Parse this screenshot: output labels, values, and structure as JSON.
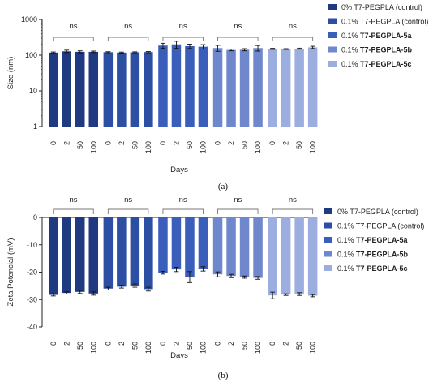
{
  "series_styles": [
    {
      "color": "#203a82"
    },
    {
      "color": "#2c4ea3"
    },
    {
      "color": "#3a5fba"
    },
    {
      "color": "#6f87cc"
    },
    {
      "color": "#9caddf"
    }
  ],
  "chart_data": [
    {
      "type": "bar",
      "panel_label": "(a)",
      "ylabel": "Size (nm)",
      "xlabel": "Days",
      "yscale": "log",
      "ylim": [
        1,
        1000
      ],
      "yticks": [
        "1",
        "10",
        "100",
        "1000"
      ],
      "categories": [
        "0",
        "2",
        "50",
        "100"
      ],
      "significance": [
        "ns",
        "ns",
        "ns",
        "ns",
        "ns"
      ],
      "series": [
        {
          "name_prefix": "0% ",
          "name_main": "T7-PEGPLA (control)",
          "bold": false,
          "values": [
            118,
            128,
            124,
            124
          ],
          "errors": [
            5,
            10,
            8,
            6
          ]
        },
        {
          "name_prefix": "0.1% ",
          "name_main": "T7-PEGPLA (control)",
          "bold": false,
          "values": [
            121,
            118,
            120,
            122
          ],
          "errors": [
            4,
            4,
            4,
            5
          ]
        },
        {
          "name_prefix": "0.1% ",
          "name_main": "T7-PEGPLA-5a",
          "bold": true,
          "values": [
            185,
            200,
            178,
            172
          ],
          "errors": [
            30,
            45,
            25,
            25
          ]
        },
        {
          "name_prefix": "0.1% ",
          "name_main": "T7-PEGPLA-5b",
          "bold": true,
          "values": [
            158,
            140,
            142,
            158
          ],
          "errors": [
            30,
            8,
            10,
            28
          ]
        },
        {
          "name_prefix": "0.1% ",
          "name_main": "T7-PEGPLA-5c",
          "bold": true,
          "values": [
            150,
            148,
            152,
            165
          ],
          "errors": [
            5,
            4,
            5,
            12
          ]
        }
      ]
    },
    {
      "type": "bar",
      "panel_label": "(b)",
      "ylabel": "Zeta Potencial (mV)",
      "xlabel": "Days",
      "yscale": "linear",
      "ylim": [
        -40,
        0
      ],
      "yticks": [
        "0",
        "-10",
        "-20",
        "-30",
        "-40"
      ],
      "categories": [
        "0",
        "2",
        "50",
        "100"
      ],
      "significance": [
        "ns",
        "ns",
        "ns",
        "ns",
        "ns"
      ],
      "series": [
        {
          "name_prefix": "0% ",
          "name_main": "T7-PEGPLA (control)",
          "bold": false,
          "values": [
            -28.3,
            -27.6,
            -27.2,
            -27.8
          ],
          "errors": [
            0.4,
            0.4,
            0.6,
            0.6
          ]
        },
        {
          "name_prefix": "0.1% ",
          "name_main": "T7-PEGPLA (control)",
          "bold": false,
          "values": [
            -26.0,
            -25.3,
            -24.9,
            -26.2
          ],
          "errors": [
            0.5,
            0.5,
            0.6,
            0.7
          ]
        },
        {
          "name_prefix": "0.1% ",
          "name_main": "T7-PEGPLA-5a",
          "bold": true,
          "values": [
            -20.2,
            -19.0,
            -21.8,
            -18.8
          ],
          "errors": [
            0.5,
            0.8,
            2.0,
            0.8
          ]
        },
        {
          "name_prefix": "0.1% ",
          "name_main": "T7-PEGPLA-5b",
          "bold": true,
          "values": [
            -20.8,
            -21.4,
            -21.8,
            -22.1
          ],
          "errors": [
            0.9,
            0.6,
            0.4,
            0.5
          ]
        },
        {
          "name_prefix": "0.1% ",
          "name_main": "T7-PEGPLA-5c",
          "bold": true,
          "values": [
            -28.5,
            -28.2,
            -28.0,
            -28.6
          ],
          "errors": [
            1.2,
            0.3,
            0.5,
            0.4
          ]
        }
      ]
    }
  ]
}
